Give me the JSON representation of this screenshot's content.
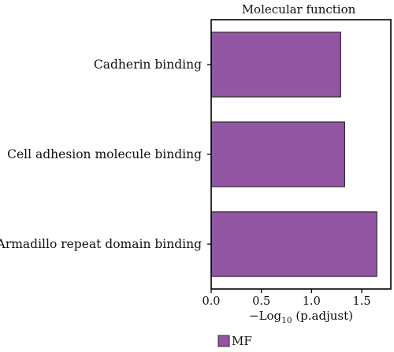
{
  "chart_data": {
    "type": "bar",
    "orientation": "horizontal",
    "title": "Molecular function",
    "categories": [
      "Cadherin binding",
      "Cell adhesion molecule binding",
      "Armadillo repeat domain binding"
    ],
    "values": [
      1.29,
      1.33,
      1.65
    ],
    "xlabel": {
      "prefix": "−Log",
      "subscript": "10",
      "suffix": " (p.adjust)"
    },
    "xlim": [
      0,
      1.79
    ],
    "xticks": [
      "0.0",
      "0.5",
      "1.0",
      "1.5"
    ],
    "grid": false,
    "legend": {
      "position": "bottom",
      "entries": [
        "MF"
      ]
    },
    "colors": {
      "bar": "#9356a3",
      "bar_stroke": "#2b2b2b",
      "frame": "#000000"
    }
  }
}
